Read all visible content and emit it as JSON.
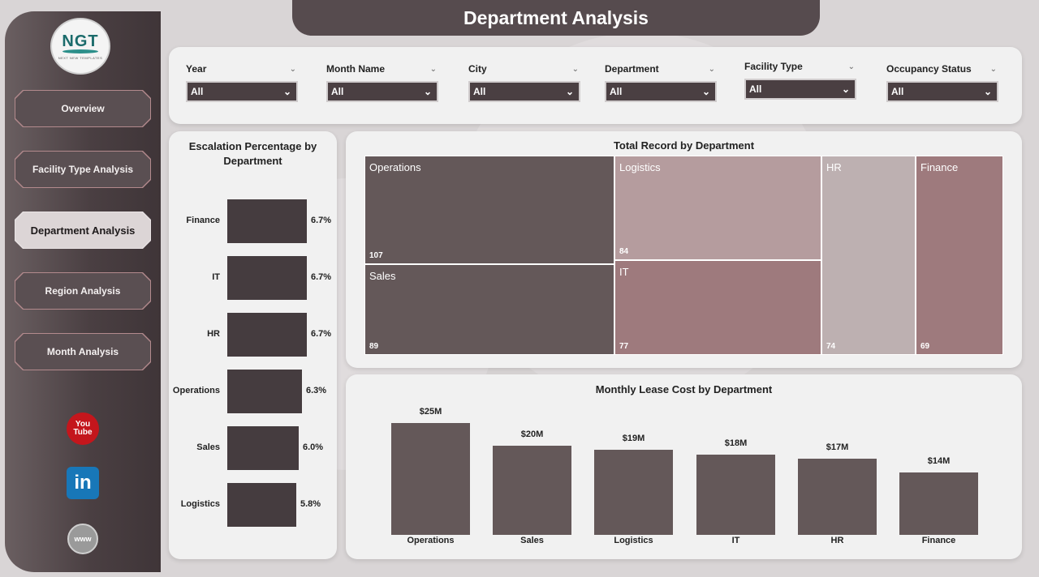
{
  "header": {
    "title": "Department Analysis"
  },
  "logo": {
    "mark": "NGT",
    "subtitle": "NEXT NEW TEMPLATES"
  },
  "sidebar": {
    "items": [
      {
        "label": "Overview",
        "active": false
      },
      {
        "label": "Facility Type Analysis",
        "active": false
      },
      {
        "label": "Department Analysis",
        "active": true
      },
      {
        "label": "Region Analysis",
        "active": false
      },
      {
        "label": "Month Analysis",
        "active": false
      }
    ],
    "social": [
      {
        "name": "youtube-icon",
        "text_top": "You",
        "text_bottom": "Tube"
      },
      {
        "name": "linkedin-icon",
        "text": "in"
      },
      {
        "name": "website-icon",
        "text": "www"
      }
    ]
  },
  "filters": [
    {
      "label": "Year",
      "value": "All"
    },
    {
      "label": "Month Name",
      "value": "All"
    },
    {
      "label": "City",
      "value": "All"
    },
    {
      "label": "Department",
      "value": "All"
    },
    {
      "label": "Facility Type",
      "value": "All"
    },
    {
      "label": "Occupancy Status",
      "value": "All"
    }
  ],
  "colors": {
    "accent_dark": "#4a3f42",
    "bar": "#453c3f",
    "lease_bar": "#645859",
    "treemap": [
      "#645859",
      "#b59c9e",
      "#bdb0b1",
      "#9e7a7d"
    ]
  },
  "chart_data": [
    {
      "type": "bar",
      "orientation": "horizontal",
      "title": "Escalation Percentage by Department",
      "categories": [
        "Finance",
        "IT",
        "HR",
        "Operations",
        "Sales",
        "Logistics"
      ],
      "values": [
        6.7,
        6.7,
        6.7,
        6.3,
        6.0,
        5.8
      ],
      "labels": [
        "6.7%",
        "6.7%",
        "6.7%",
        "6.3%",
        "6.0%",
        "5.8%"
      ]
    },
    {
      "type": "treemap",
      "title": "Total Record by Department",
      "categories": [
        "Operations",
        "Sales",
        "Logistics",
        "IT",
        "HR",
        "Finance"
      ],
      "values": [
        107,
        89,
        84,
        77,
        74,
        69
      ]
    },
    {
      "type": "bar",
      "title": "Monthly Lease Cost by Department",
      "categories": [
        "Operations",
        "Sales",
        "Logistics",
        "IT",
        "HR",
        "Finance"
      ],
      "values": [
        25,
        20,
        19,
        18,
        17,
        14
      ],
      "labels": [
        "$25M",
        "$20M",
        "$19M",
        "$18M",
        "$17M",
        "$14M"
      ]
    }
  ]
}
